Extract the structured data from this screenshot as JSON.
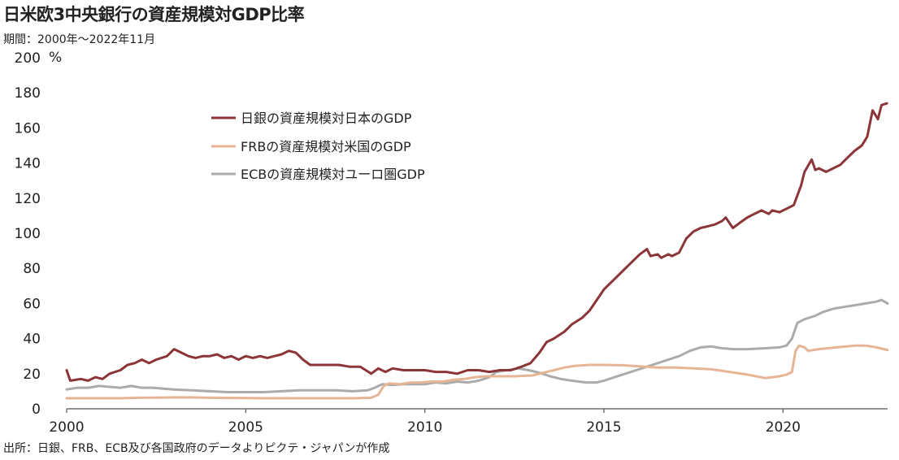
{
  "title": "日米欧3中央銀行の資産規模対GDP比率",
  "subtitle": "期間：2000年～2022年11月",
  "source": "出所：日銀、FRB、ECB及び各国政府のデータよりピクテ・ジャパンが作成",
  "colors": {
    "boj": "#8c3538",
    "frb": "#e6b596",
    "ecb": "#ababab",
    "axis": "#555555"
  },
  "chart_data": {
    "type": "line",
    "title": "日米欧3中央銀行の資産規模対GDP比率",
    "subtitle": "期間：2000年～2022年11月",
    "xlabel": "",
    "ylabel": "%",
    "xlim": [
      2000,
      2022.92
    ],
    "ylim": [
      0,
      200
    ],
    "x_ticks": [
      2000,
      2005,
      2010,
      2015,
      2020
    ],
    "y_ticks": [
      0,
      20,
      40,
      60,
      80,
      100,
      120,
      140,
      160,
      180,
      200
    ],
    "grid": false,
    "legend_position": "top-left",
    "series": [
      {
        "name": "日銀の資産規模対日本のGDP",
        "color": "#8c3538",
        "points": [
          [
            2000.0,
            22
          ],
          [
            2000.1,
            16
          ],
          [
            2000.4,
            17
          ],
          [
            2000.6,
            16
          ],
          [
            2000.8,
            18
          ],
          [
            2001.0,
            17
          ],
          [
            2001.2,
            20
          ],
          [
            2001.5,
            22
          ],
          [
            2001.7,
            25
          ],
          [
            2001.9,
            26
          ],
          [
            2002.1,
            28
          ],
          [
            2002.3,
            26
          ],
          [
            2002.5,
            28
          ],
          [
            2002.8,
            30
          ],
          [
            2003.0,
            34
          ],
          [
            2003.2,
            32
          ],
          [
            2003.4,
            30
          ],
          [
            2003.6,
            29
          ],
          [
            2003.8,
            30
          ],
          [
            2004.0,
            30
          ],
          [
            2004.2,
            31
          ],
          [
            2004.4,
            29
          ],
          [
            2004.6,
            30
          ],
          [
            2004.8,
            28
          ],
          [
            2005.0,
            30
          ],
          [
            2005.2,
            29
          ],
          [
            2005.4,
            30
          ],
          [
            2005.6,
            29
          ],
          [
            2005.8,
            30
          ],
          [
            2006.0,
            31
          ],
          [
            2006.2,
            33
          ],
          [
            2006.4,
            32
          ],
          [
            2006.6,
            28
          ],
          [
            2006.8,
            25
          ],
          [
            2007.0,
            25
          ],
          [
            2007.3,
            25
          ],
          [
            2007.6,
            25
          ],
          [
            2007.9,
            24
          ],
          [
            2008.2,
            24
          ],
          [
            2008.5,
            20
          ],
          [
            2008.7,
            23
          ],
          [
            2008.9,
            21
          ],
          [
            2009.1,
            23
          ],
          [
            2009.4,
            22
          ],
          [
            2009.7,
            22
          ],
          [
            2010.0,
            22
          ],
          [
            2010.3,
            21
          ],
          [
            2010.6,
            21
          ],
          [
            2010.9,
            20
          ],
          [
            2011.2,
            22
          ],
          [
            2011.5,
            22
          ],
          [
            2011.8,
            21
          ],
          [
            2012.1,
            22
          ],
          [
            2012.4,
            22
          ],
          [
            2012.7,
            24
          ],
          [
            2012.95,
            26
          ],
          [
            2013.2,
            32
          ],
          [
            2013.4,
            38
          ],
          [
            2013.6,
            40
          ],
          [
            2013.9,
            44
          ],
          [
            2014.1,
            48
          ],
          [
            2014.4,
            52
          ],
          [
            2014.6,
            56
          ],
          [
            2014.8,
            62
          ],
          [
            2015.0,
            68
          ],
          [
            2015.3,
            74
          ],
          [
            2015.5,
            78
          ],
          [
            2015.8,
            84
          ],
          [
            2016.0,
            88
          ],
          [
            2016.2,
            91
          ],
          [
            2016.3,
            87
          ],
          [
            2016.5,
            88
          ],
          [
            2016.6,
            86
          ],
          [
            2016.8,
            88
          ],
          [
            2016.9,
            87
          ],
          [
            2017.1,
            89
          ],
          [
            2017.3,
            97
          ],
          [
            2017.5,
            101
          ],
          [
            2017.7,
            103
          ],
          [
            2017.9,
            104
          ],
          [
            2018.1,
            105
          ],
          [
            2018.3,
            107
          ],
          [
            2018.4,
            109
          ],
          [
            2018.6,
            103
          ],
          [
            2018.8,
            106
          ],
          [
            2019.0,
            109
          ],
          [
            2019.2,
            111
          ],
          [
            2019.4,
            113
          ],
          [
            2019.6,
            111
          ],
          [
            2019.7,
            113
          ],
          [
            2019.9,
            112
          ],
          [
            2020.1,
            114
          ],
          [
            2020.3,
            116
          ],
          [
            2020.5,
            127
          ],
          [
            2020.6,
            135
          ],
          [
            2020.8,
            142
          ],
          [
            2020.9,
            136
          ],
          [
            2021.0,
            137
          ],
          [
            2021.2,
            135
          ],
          [
            2021.4,
            137
          ],
          [
            2021.6,
            139
          ],
          [
            2021.8,
            143
          ],
          [
            2022.0,
            147
          ],
          [
            2022.2,
            150
          ],
          [
            2022.35,
            155
          ],
          [
            2022.5,
            170
          ],
          [
            2022.65,
            165
          ],
          [
            2022.75,
            173
          ],
          [
            2022.9,
            174
          ]
        ]
      },
      {
        "name": "FRBの資産規模対米国のGDP",
        "color": "#e6b596",
        "points": [
          [
            2000.0,
            6
          ],
          [
            2000.5,
            6
          ],
          [
            2001.0,
            6
          ],
          [
            2001.5,
            6
          ],
          [
            2002.0,
            6.3
          ],
          [
            2002.5,
            6.4
          ],
          [
            2003.0,
            6.5
          ],
          [
            2003.5,
            6.5
          ],
          [
            2004.0,
            6.3
          ],
          [
            2004.5,
            6.2
          ],
          [
            2005.0,
            6.1
          ],
          [
            2005.5,
            6.0
          ],
          [
            2006.0,
            6.0
          ],
          [
            2006.5,
            6.0
          ],
          [
            2007.0,
            6.0
          ],
          [
            2007.5,
            6.0
          ],
          [
            2008.0,
            6.0
          ],
          [
            2008.5,
            6.3
          ],
          [
            2008.7,
            8
          ],
          [
            2008.85,
            13
          ],
          [
            2009.0,
            14.5
          ],
          [
            2009.3,
            14
          ],
          [
            2009.6,
            15
          ],
          [
            2009.9,
            15
          ],
          [
            2010.2,
            15.5
          ],
          [
            2010.5,
            15.5
          ],
          [
            2010.8,
            16.5
          ],
          [
            2011.1,
            17
          ],
          [
            2011.4,
            18
          ],
          [
            2011.7,
            18.5
          ],
          [
            2012.0,
            18.5
          ],
          [
            2012.5,
            18.5
          ],
          [
            2013.0,
            19
          ],
          [
            2013.3,
            20.5
          ],
          [
            2013.6,
            22
          ],
          [
            2013.9,
            23.5
          ],
          [
            2014.2,
            24.5
          ],
          [
            2014.6,
            25
          ],
          [
            2015.0,
            25
          ],
          [
            2015.5,
            24.8
          ],
          [
            2016.0,
            24.2
          ],
          [
            2016.5,
            23.5
          ],
          [
            2017.0,
            23.5
          ],
          [
            2017.5,
            23
          ],
          [
            2018.0,
            22.5
          ],
          [
            2018.5,
            21
          ],
          [
            2019.0,
            19.5
          ],
          [
            2019.5,
            17.5
          ],
          [
            2019.9,
            18.5
          ],
          [
            2020.1,
            19.5
          ],
          [
            2020.25,
            21
          ],
          [
            2020.35,
            33
          ],
          [
            2020.45,
            36
          ],
          [
            2020.6,
            35
          ],
          [
            2020.7,
            33
          ],
          [
            2021.0,
            34
          ],
          [
            2021.5,
            35
          ],
          [
            2022.0,
            36
          ],
          [
            2022.3,
            36
          ],
          [
            2022.6,
            35
          ],
          [
            2022.92,
            33.5
          ]
        ]
      },
      {
        "name": "ECBの資産規模対ユーロ圏GDP",
        "color": "#ababab",
        "points": [
          [
            2000.0,
            11
          ],
          [
            2000.3,
            12
          ],
          [
            2000.6,
            12
          ],
          [
            2000.9,
            13
          ],
          [
            2001.2,
            12.5
          ],
          [
            2001.5,
            12
          ],
          [
            2001.8,
            13
          ],
          [
            2002.1,
            12
          ],
          [
            2002.4,
            12
          ],
          [
            2002.7,
            11.5
          ],
          [
            2003.0,
            11
          ],
          [
            2003.5,
            10.5
          ],
          [
            2004.0,
            10
          ],
          [
            2004.5,
            9.5
          ],
          [
            2005.0,
            9.5
          ],
          [
            2005.5,
            9.5
          ],
          [
            2006.0,
            10
          ],
          [
            2006.5,
            10.5
          ],
          [
            2007.0,
            10.5
          ],
          [
            2007.5,
            10.5
          ],
          [
            2008.0,
            10
          ],
          [
            2008.4,
            10.5
          ],
          [
            2008.6,
            12
          ],
          [
            2008.8,
            14
          ],
          [
            2009.1,
            13.5
          ],
          [
            2009.4,
            14
          ],
          [
            2009.7,
            14
          ],
          [
            2010.0,
            14
          ],
          [
            2010.3,
            15
          ],
          [
            2010.6,
            14.5
          ],
          [
            2010.9,
            15.5
          ],
          [
            2011.2,
            15
          ],
          [
            2011.5,
            16
          ],
          [
            2011.8,
            18
          ],
          [
            2012.0,
            21
          ],
          [
            2012.3,
            22
          ],
          [
            2012.6,
            23
          ],
          [
            2012.9,
            22
          ],
          [
            2013.2,
            20.5
          ],
          [
            2013.5,
            18.5
          ],
          [
            2013.8,
            17
          ],
          [
            2014.1,
            16
          ],
          [
            2014.5,
            15
          ],
          [
            2014.8,
            15
          ],
          [
            2015.0,
            16
          ],
          [
            2015.3,
            18
          ],
          [
            2015.6,
            20
          ],
          [
            2015.9,
            22
          ],
          [
            2016.2,
            24
          ],
          [
            2016.5,
            26
          ],
          [
            2016.8,
            28
          ],
          [
            2017.1,
            30
          ],
          [
            2017.4,
            33
          ],
          [
            2017.7,
            35
          ],
          [
            2018.0,
            35.5
          ],
          [
            2018.3,
            34.5
          ],
          [
            2018.6,
            34
          ],
          [
            2019.0,
            34
          ],
          [
            2019.5,
            34.5
          ],
          [
            2019.9,
            35
          ],
          [
            2020.1,
            36
          ],
          [
            2020.25,
            40
          ],
          [
            2020.4,
            49
          ],
          [
            2020.6,
            51
          ],
          [
            2020.9,
            53
          ],
          [
            2021.1,
            55
          ],
          [
            2021.4,
            57
          ],
          [
            2021.7,
            58
          ],
          [
            2022.0,
            59
          ],
          [
            2022.3,
            60
          ],
          [
            2022.6,
            61
          ],
          [
            2022.75,
            62
          ],
          [
            2022.92,
            60
          ]
        ]
      }
    ]
  }
}
